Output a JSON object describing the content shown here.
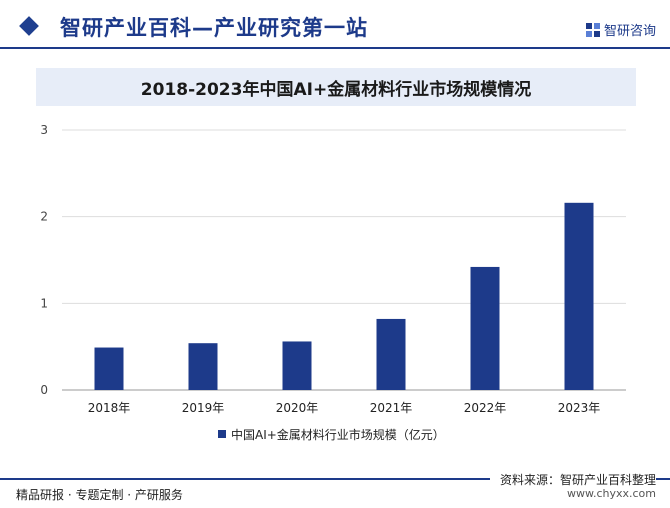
{
  "header": {
    "title": "智研产业百科—产业研究第一站",
    "logo_text": "智研咨询",
    "accent_color": "#1d3a8a"
  },
  "chart_data": {
    "type": "bar",
    "title": "2018-2023年中国AI+金属材料行业市场规模情况",
    "categories": [
      "2018年",
      "2019年",
      "2020年",
      "2021年",
      "2022年",
      "2023年"
    ],
    "series": [
      {
        "name": "中国AI+金属材料行业市场规模（亿元）",
        "values": [
          0.49,
          0.54,
          0.56,
          0.82,
          1.42,
          2.16
        ],
        "color": "#1d3a8a"
      }
    ],
    "yticks": [
      "0",
      "1",
      "2",
      "3"
    ],
    "ylim": [
      0,
      3
    ],
    "grid": true,
    "legend_position": "bottom"
  },
  "footer": {
    "left": "精品研报 · 专题定制 · 产研服务",
    "source": "资料来源：智研产业百科整理",
    "url": "www.chyxx.com"
  }
}
